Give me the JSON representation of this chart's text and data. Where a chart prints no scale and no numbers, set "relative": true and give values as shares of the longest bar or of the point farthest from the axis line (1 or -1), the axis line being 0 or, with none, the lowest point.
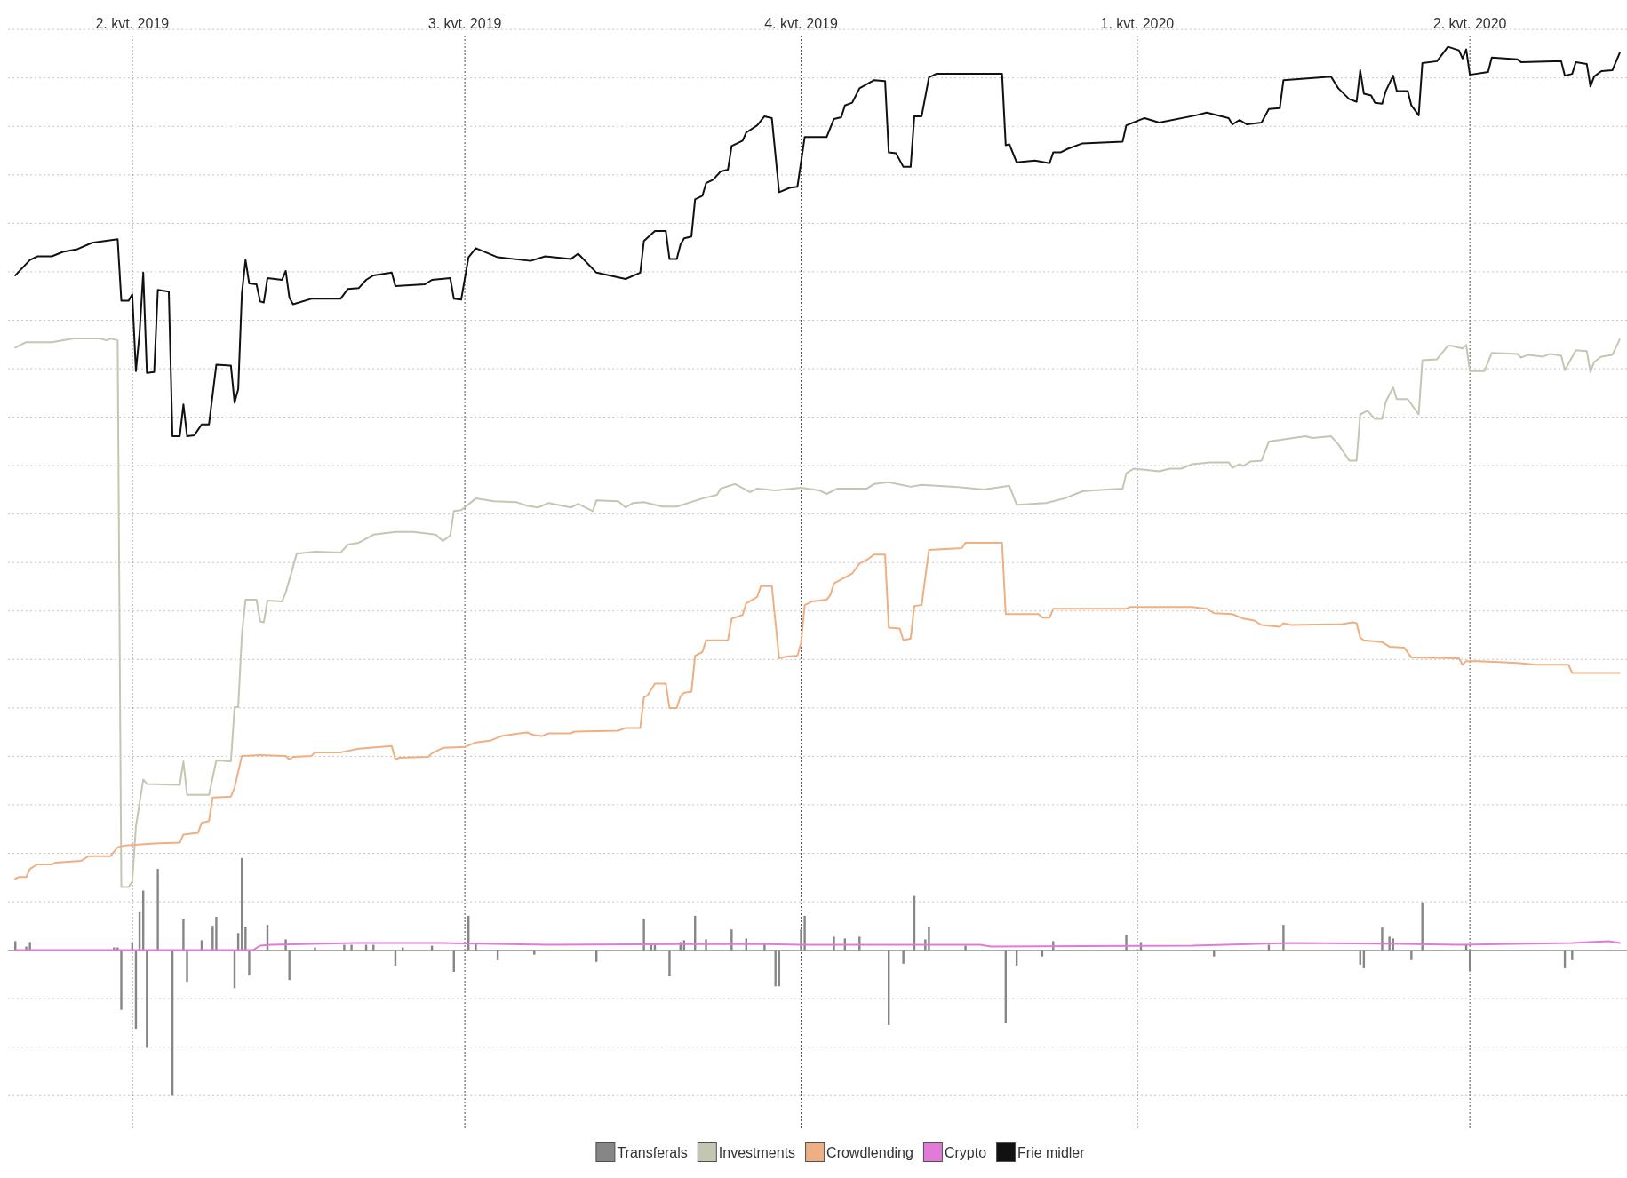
{
  "chart_data": {
    "type": "line",
    "relative": true,
    "grid": true,
    "legend": "bottom",
    "xlim": [
      "2019-02-26",
      "2020-05-14"
    ],
    "xticks": [
      {
        "value": "2019-04-01",
        "label": "2. kvt. 2019"
      },
      {
        "value": "2019-07-01",
        "label": "3. kvt. 2019"
      },
      {
        "value": "2019-10-01",
        "label": "4. kvt. 2019"
      },
      {
        "value": "2020-01-01",
        "label": "1. kvt. 2020"
      },
      {
        "value": "2020-04-01",
        "label": "2. kvt. 2020"
      }
    ],
    "series": [
      {
        "name": "Transferals",
        "type": "bar",
        "color": "#868686",
        "x": [
          "2019-02-28",
          "2019-03-03",
          "2019-03-04",
          "2019-03-27",
          "2019-03-28",
          "2019-03-29",
          "2019-04-01",
          "2019-04-02",
          "2019-04-03",
          "2019-04-04",
          "2019-04-05",
          "2019-04-08",
          "2019-04-12",
          "2019-04-15",
          "2019-04-16",
          "2019-04-20",
          "2019-04-23",
          "2019-04-24",
          "2019-04-29",
          "2019-04-30",
          "2019-05-01",
          "2019-05-02",
          "2019-05-03",
          "2019-05-08",
          "2019-05-13",
          "2019-05-14",
          "2019-05-21",
          "2019-05-29",
          "2019-05-31",
          "2019-06-04",
          "2019-06-06",
          "2019-06-12",
          "2019-06-14",
          "2019-06-22",
          "2019-06-28",
          "2019-07-02",
          "2019-07-04",
          "2019-07-10",
          "2019-07-20",
          "2019-08-06",
          "2019-08-19",
          "2019-08-21",
          "2019-08-22",
          "2019-08-26",
          "2019-08-29",
          "2019-08-30",
          "2019-09-02",
          "2019-09-05",
          "2019-09-12",
          "2019-09-16",
          "2019-09-21",
          "2019-09-24",
          "2019-09-25",
          "2019-10-01",
          "2019-10-02",
          "2019-10-10",
          "2019-10-13",
          "2019-10-17",
          "2019-10-25",
          "2019-10-29",
          "2019-11-01",
          "2019-11-04",
          "2019-11-05",
          "2019-11-15",
          "2019-11-26",
          "2019-11-29",
          "2019-12-06",
          "2019-12-09",
          "2019-12-29",
          "2020-01-02",
          "2020-01-22",
          "2020-02-06",
          "2020-02-10",
          "2020-03-02",
          "2020-03-03",
          "2020-03-08",
          "2020-03-10",
          "2020-03-11",
          "2020-03-16",
          "2020-03-19",
          "2020-03-31",
          "2020-04-01",
          "2020-04-27",
          "2020-04-29"
        ],
        "values": [
          0.01,
          0.004,
          0.009,
          0.003,
          0.003,
          -0.066,
          0.008,
          -0.087,
          0.042,
          0.066,
          -0.108,
          0.09,
          -0.161,
          0.034,
          -0.035,
          0.011,
          0.027,
          0.037,
          -0.042,
          0.019,
          0.102,
          0.026,
          -0.028,
          0.028,
          0.012,
          -0.033,
          0.003,
          0.006,
          0.006,
          0.006,
          0.006,
          -0.017,
          0.003,
          0.005,
          -0.024,
          0.038,
          0.007,
          -0.011,
          -0.005,
          -0.013,
          0.034,
          0.006,
          0.006,
          -0.029,
          0.009,
          0.011,
          0.038,
          0.012,
          0.023,
          0.013,
          0.008,
          -0.04,
          -0.04,
          0.023,
          0.038,
          0.015,
          0.013,
          0.015,
          -0.083,
          -0.015,
          0.06,
          0.012,
          0.026,
          0.005,
          -0.081,
          -0.017,
          -0.007,
          0.01,
          0.017,
          0.009,
          -0.007,
          0.006,
          0.028,
          -0.016,
          -0.02,
          0.025,
          0.015,
          0.013,
          -0.011,
          0.053,
          0.006,
          -0.023,
          -0.02,
          -0.011
        ]
      },
      {
        "name": "Investments",
        "color": "#c5c6b2",
        "x": [
          "2019-02-28",
          "2019-03-03",
          "2019-03-10",
          "2019-03-16",
          "2019-03-23",
          "2019-03-25",
          "2019-03-26",
          "2019-03-28",
          "2019-03-29",
          "2019-03-31",
          "2019-04-01",
          "2019-04-02",
          "2019-04-04",
          "2019-04-05",
          "2019-04-14",
          "2019-04-15",
          "2019-04-16",
          "2019-04-22",
          "2019-04-24",
          "2019-04-28",
          "2019-04-29",
          "2019-04-30",
          "2019-05-01",
          "2019-05-02",
          "2019-05-05",
          "2019-05-06",
          "2019-05-07",
          "2019-05-08",
          "2019-05-12",
          "2019-05-13",
          "2019-05-14",
          "2019-05-16",
          "2019-05-21",
          "2019-05-28",
          "2019-05-30",
          "2019-06-02",
          "2019-06-06",
          "2019-06-12",
          "2019-06-17",
          "2019-06-23",
          "2019-06-25",
          "2019-06-27",
          "2019-06-28",
          "2019-06-30",
          "2019-07-04",
          "2019-07-09",
          "2019-07-15",
          "2019-07-18",
          "2019-07-21",
          "2019-07-24",
          "2019-07-30",
          "2019-08-01",
          "2019-08-05",
          "2019-08-06",
          "2019-08-12",
          "2019-08-14",
          "2019-08-16",
          "2019-08-19",
          "2019-08-24",
          "2019-08-28",
          "2019-09-04",
          "2019-09-08",
          "2019-09-09",
          "2019-09-13",
          "2019-09-17",
          "2019-09-19",
          "2019-09-24",
          "2019-10-01",
          "2019-10-06",
          "2019-10-08",
          "2019-10-11",
          "2019-10-19",
          "2019-10-21",
          "2019-10-25",
          "2019-10-31",
          "2019-11-03",
          "2019-11-12",
          "2019-11-20",
          "2019-11-27",
          "2019-11-29",
          "2019-12-07",
          "2019-12-12",
          "2019-12-17",
          "2019-12-20",
          "2019-12-28",
          "2019-12-29",
          "2019-12-31",
          "2020-01-07",
          "2020-01-10",
          "2020-01-13",
          "2020-01-16",
          "2020-01-21",
          "2020-01-26",
          "2020-01-27",
          "2020-01-29",
          "2020-01-30",
          "2020-02-01",
          "2020-02-04",
          "2020-02-06",
          "2020-02-11",
          "2020-02-16",
          "2020-02-18",
          "2020-02-23",
          "2020-02-25",
          "2020-02-28",
          "2020-03-01",
          "2020-03-02",
          "2020-03-04",
          "2020-03-06",
          "2020-03-08",
          "2020-03-09",
          "2020-03-11",
          "2020-03-12",
          "2020-03-15",
          "2020-03-18",
          "2020-03-19",
          "2020-03-23",
          "2020-03-26",
          "2020-03-27",
          "2020-03-30",
          "2020-03-31",
          "2020-04-01",
          "2020-04-05",
          "2020-04-07",
          "2020-04-14",
          "2020-04-15",
          "2020-04-17",
          "2020-04-21",
          "2020-04-23",
          "2020-04-26",
          "2020-04-27",
          "2020-04-30",
          "2020-05-03",
          "2020-05-04",
          "2020-05-05",
          "2020-05-07",
          "2020-05-10",
          "2020-05-12"
        ],
        "values": [
          0.667,
          0.673,
          0.673,
          0.677,
          0.677,
          0.675,
          0.677,
          0.675,
          0.07,
          0.07,
          0.076,
          0.137,
          0.189,
          0.184,
          0.183,
          0.209,
          0.172,
          0.172,
          0.21,
          0.209,
          0.269,
          0.269,
          0.349,
          0.388,
          0.388,
          0.364,
          0.363,
          0.387,
          0.386,
          0.396,
          0.41,
          0.439,
          0.441,
          0.44,
          0.449,
          0.451,
          0.46,
          0.463,
          0.463,
          0.46,
          0.453,
          0.459,
          0.486,
          0.487,
          0.5,
          0.497,
          0.496,
          0.492,
          0.49,
          0.495,
          0.49,
          0.494,
          0.486,
          0.498,
          0.497,
          0.49,
          0.495,
          0.496,
          0.491,
          0.491,
          0.5,
          0.504,
          0.511,
          0.516,
          0.507,
          0.511,
          0.509,
          0.512,
          0.509,
          0.505,
          0.511,
          0.511,
          0.516,
          0.518,
          0.513,
          0.515,
          0.513,
          0.51,
          0.514,
          0.493,
          0.495,
          0.5,
          0.508,
          0.509,
          0.511,
          0.528,
          0.533,
          0.53,
          0.533,
          0.533,
          0.538,
          0.54,
          0.54,
          0.534,
          0.538,
          0.536,
          0.541,
          0.542,
          0.563,
          0.566,
          0.569,
          0.567,
          0.569,
          0.56,
          0.542,
          0.542,
          0.593,
          0.597,
          0.588,
          0.588,
          0.607,
          0.623,
          0.61,
          0.61,
          0.593,
          0.653,
          0.654,
          0.669,
          0.669,
          0.666,
          0.67,
          0.641,
          0.641,
          0.661,
          0.66,
          0.656,
          0.659,
          0.657,
          0.66,
          0.658,
          0.642,
          0.664,
          0.663,
          0.64,
          0.651,
          0.657,
          0.659,
          0.676
        ]
      },
      {
        "name": "Crowdlending",
        "color": "#eeb082",
        "x": [
          "2019-02-28",
          "2019-03-01",
          "2019-03-03",
          "2019-03-04",
          "2019-03-06",
          "2019-03-10",
          "2019-03-11",
          "2019-03-18",
          "2019-03-20",
          "2019-03-26",
          "2019-03-28",
          "2019-03-30",
          "2019-04-07",
          "2019-04-14",
          "2019-04-15",
          "2019-04-19",
          "2019-04-20",
          "2019-04-22",
          "2019-04-23",
          "2019-04-28",
          "2019-04-29",
          "2019-05-01",
          "2019-05-06",
          "2019-05-13",
          "2019-05-14",
          "2019-05-15",
          "2019-05-20",
          "2019-05-21",
          "2019-05-28",
          "2019-06-02",
          "2019-06-11",
          "2019-06-12",
          "2019-06-13",
          "2019-06-21",
          "2019-06-22",
          "2019-06-25",
          "2019-07-01",
          "2019-07-04",
          "2019-07-08",
          "2019-07-11",
          "2019-07-16",
          "2019-07-18",
          "2019-07-20",
          "2019-07-22",
          "2019-07-24",
          "2019-07-30",
          "2019-07-31",
          "2019-08-12",
          "2019-08-14",
          "2019-08-18",
          "2019-08-19",
          "2019-08-20",
          "2019-08-22",
          "2019-08-25",
          "2019-08-26",
          "2019-08-28",
          "2019-08-29",
          "2019-08-30",
          "2019-09-01",
          "2019-09-02",
          "2019-09-04",
          "2019-09-05",
          "2019-09-11",
          "2019-09-12",
          "2019-09-15",
          "2019-09-16",
          "2019-09-19",
          "2019-09-20",
          "2019-09-23",
          "2019-09-25",
          "2019-09-27",
          "2019-09-30",
          "2019-10-01",
          "2019-10-02",
          "2019-10-04",
          "2019-10-08",
          "2019-10-09",
          "2019-10-10",
          "2019-10-15",
          "2019-10-17",
          "2019-10-19",
          "2019-10-21",
          "2019-10-24",
          "2019-10-25",
          "2019-10-28",
          "2019-10-29",
          "2019-10-31",
          "2019-11-01",
          "2019-11-03",
          "2019-11-05",
          "2019-11-14",
          "2019-11-15",
          "2019-11-25",
          "2019-11-26",
          "2019-12-05",
          "2019-12-06",
          "2019-12-08",
          "2019-12-09",
          "2019-12-29",
          "2019-12-30",
          "2020-01-16",
          "2020-01-20",
          "2020-01-22",
          "2020-01-27",
          "2020-01-30",
          "2020-02-02",
          "2020-02-04",
          "2020-02-09",
          "2020-02-10",
          "2020-02-12",
          "2020-02-26",
          "2020-02-29",
          "2020-03-01",
          "2020-03-02",
          "2020-03-03",
          "2020-03-08",
          "2020-03-10",
          "2020-03-14",
          "2020-03-16",
          "2020-03-29",
          "2020-03-30",
          "2020-03-31",
          "2020-04-03",
          "2020-04-09",
          "2020-04-14",
          "2020-04-19",
          "2020-04-28",
          "2020-04-29",
          "2020-05-12"
        ],
        "values": [
          0.079,
          0.081,
          0.081,
          0.09,
          0.095,
          0.095,
          0.097,
          0.099,
          0.104,
          0.104,
          0.114,
          0.116,
          0.118,
          0.119,
          0.128,
          0.13,
          0.141,
          0.143,
          0.169,
          0.17,
          0.18,
          0.215,
          0.216,
          0.215,
          0.211,
          0.214,
          0.215,
          0.219,
          0.219,
          0.223,
          0.226,
          0.211,
          0.213,
          0.214,
          0.218,
          0.224,
          0.225,
          0.23,
          0.232,
          0.237,
          0.24,
          0.241,
          0.238,
          0.237,
          0.24,
          0.24,
          0.242,
          0.243,
          0.246,
          0.246,
          0.28,
          0.282,
          0.295,
          0.295,
          0.268,
          0.268,
          0.281,
          0.285,
          0.286,
          0.326,
          0.33,
          0.343,
          0.343,
          0.367,
          0.371,
          0.384,
          0.391,
          0.403,
          0.403,
          0.323,
          0.325,
          0.326,
          0.34,
          0.382,
          0.386,
          0.388,
          0.393,
          0.406,
          0.417,
          0.428,
          0.432,
          0.438,
          0.438,
          0.357,
          0.356,
          0.343,
          0.345,
          0.381,
          0.382,
          0.443,
          0.445,
          0.451,
          0.451,
          0.372,
          0.372,
          0.368,
          0.368,
          0.378,
          0.378,
          0.38,
          0.38,
          0.378,
          0.373,
          0.372,
          0.367,
          0.365,
          0.36,
          0.358,
          0.362,
          0.36,
          0.361,
          0.363,
          0.362,
          0.346,
          0.343,
          0.341,
          0.336,
          0.335,
          0.324,
          0.323,
          0.316,
          0.32,
          0.32,
          0.319,
          0.318,
          0.316,
          0.316,
          0.307,
          0.307
        ]
      },
      {
        "name": "Crypto",
        "color": "#e27bd8",
        "x": [
          "2019-02-28",
          "2019-05-04",
          "2019-05-06",
          "2019-05-09",
          "2019-06-01",
          "2019-06-25",
          "2019-07-24",
          "2019-09-18",
          "2019-10-01",
          "2019-11-19",
          "2019-11-22",
          "2020-01-16",
          "2020-02-12",
          "2020-03-13",
          "2020-03-29",
          "2020-04-29",
          "2020-05-09",
          "2020-05-12"
        ],
        "values": [
          0,
          0,
          0.005,
          0.006,
          0.008,
          0.008,
          0.006,
          0.007,
          0.006,
          0.006,
          0.004,
          0.005,
          0.008,
          0.007,
          0.006,
          0.008,
          0.01,
          0.008
        ]
      },
      {
        "name": "Frie midler",
        "color": "#111111",
        "x": [
          "2019-02-28",
          "2019-03-04",
          "2019-03-06",
          "2019-03-10",
          "2019-03-13",
          "2019-03-17",
          "2019-03-21",
          "2019-03-28",
          "2019-03-29",
          "2019-03-31",
          "2019-04-01",
          "2019-04-02",
          "2019-04-03",
          "2019-04-04",
          "2019-04-05",
          "2019-04-07",
          "2019-04-08",
          "2019-04-11",
          "2019-04-12",
          "2019-04-14",
          "2019-04-15",
          "2019-04-16",
          "2019-04-18",
          "2019-04-20",
          "2019-04-22",
          "2019-04-24",
          "2019-04-28",
          "2019-04-29",
          "2019-04-30",
          "2019-05-01",
          "2019-05-02",
          "2019-05-03",
          "2019-05-05",
          "2019-05-06",
          "2019-05-07",
          "2019-05-08",
          "2019-05-12",
          "2019-05-13",
          "2019-05-14",
          "2019-05-15",
          "2019-05-20",
          "2019-05-28",
          "2019-05-30",
          "2019-06-02",
          "2019-06-04",
          "2019-06-06",
          "2019-06-11",
          "2019-06-12",
          "2019-06-20",
          "2019-06-22",
          "2019-06-27",
          "2019-06-28",
          "2019-06-30",
          "2019-07-02",
          "2019-07-04",
          "2019-07-10",
          "2019-07-19",
          "2019-07-23",
          "2019-07-30",
          "2019-08-01",
          "2019-08-06",
          "2019-08-14",
          "2019-08-18",
          "2019-08-19",
          "2019-08-22",
          "2019-08-25",
          "2019-08-26",
          "2019-08-28",
          "2019-08-29",
          "2019-08-30",
          "2019-09-01",
          "2019-09-02",
          "2019-09-04",
          "2019-09-05",
          "2019-09-07",
          "2019-09-09",
          "2019-09-11",
          "2019-09-12",
          "2019-09-15",
          "2019-09-16",
          "2019-09-19",
          "2019-09-21",
          "2019-09-23",
          "2019-09-25",
          "2019-09-28",
          "2019-09-30",
          "2019-10-02",
          "2019-10-08",
          "2019-10-10",
          "2019-10-12",
          "2019-10-13",
          "2019-10-15",
          "2019-10-17",
          "2019-10-21",
          "2019-10-24",
          "2019-10-25",
          "2019-10-27",
          "2019-10-29",
          "2019-10-31",
          "2019-11-01",
          "2019-11-03",
          "2019-11-05",
          "2019-11-07",
          "2019-11-15",
          "2019-11-25",
          "2019-11-26",
          "2019-11-27",
          "2019-11-29",
          "2019-12-04",
          "2019-12-08",
          "2019-12-09",
          "2019-12-11",
          "2019-12-13",
          "2019-12-17",
          "2019-12-28",
          "2019-12-29",
          "2020-01-03",
          "2020-01-07",
          "2020-01-17",
          "2020-01-20",
          "2020-01-26",
          "2020-01-27",
          "2020-01-29",
          "2020-01-31",
          "2020-02-04",
          "2020-02-06",
          "2020-02-09",
          "2020-02-10",
          "2020-02-23",
          "2020-02-25",
          "2020-02-28",
          "2020-03-01",
          "2020-03-02",
          "2020-03-03",
          "2020-03-05",
          "2020-03-06",
          "2020-03-08",
          "2020-03-09",
          "2020-03-11",
          "2020-03-12",
          "2020-03-15",
          "2020-03-16",
          "2020-03-18",
          "2020-03-19",
          "2020-03-23",
          "2020-03-26",
          "2020-03-29",
          "2020-03-30",
          "2020-03-31",
          "2020-04-01",
          "2020-04-06",
          "2020-04-07",
          "2020-04-14",
          "2020-04-15",
          "2020-04-26",
          "2020-04-27",
          "2020-04-29",
          "2020-04-30",
          "2020-05-03",
          "2020-05-04",
          "2020-05-05",
          "2020-05-07",
          "2020-05-10",
          "2020-05-12"
        ],
        "values": [
          0.747,
          0.764,
          0.768,
          0.768,
          0.773,
          0.776,
          0.783,
          0.787,
          0.719,
          0.719,
          0.726,
          0.641,
          0.683,
          0.75,
          0.639,
          0.64,
          0.731,
          0.729,
          0.569,
          0.569,
          0.604,
          0.569,
          0.57,
          0.582,
          0.582,
          0.648,
          0.647,
          0.606,
          0.621,
          0.727,
          0.764,
          0.738,
          0.737,
          0.718,
          0.717,
          0.744,
          0.742,
          0.752,
          0.722,
          0.715,
          0.721,
          0.721,
          0.732,
          0.733,
          0.742,
          0.747,
          0.75,
          0.735,
          0.737,
          0.742,
          0.744,
          0.721,
          0.72,
          0.767,
          0.777,
          0.767,
          0.763,
          0.768,
          0.765,
          0.771,
          0.75,
          0.743,
          0.75,
          0.785,
          0.796,
          0.796,
          0.765,
          0.765,
          0.781,
          0.788,
          0.79,
          0.831,
          0.835,
          0.849,
          0.853,
          0.862,
          0.864,
          0.89,
          0.896,
          0.905,
          0.913,
          0.923,
          0.921,
          0.839,
          0.844,
          0.845,
          0.9,
          0.9,
          0.92,
          0.922,
          0.935,
          0.938,
          0.954,
          0.963,
          0.962,
          0.883,
          0.882,
          0.867,
          0.867,
          0.923,
          0.923,
          0.966,
          0.97,
          0.97,
          0.97,
          0.891,
          0.892,
          0.872,
          0.874,
          0.871,
          0.883,
          0.883,
          0.887,
          0.893,
          0.895,
          0.913,
          0.921,
          0.916,
          0.924,
          0.927,
          0.921,
          0.914,
          0.919,
          0.914,
          0.916,
          0.931,
          0.932,
          0.963,
          0.967,
          0.954,
          0.942,
          0.939,
          0.974,
          0.948,
          0.946,
          0.938,
          0.937,
          0.951,
          0.968,
          0.951,
          0.951,
          0.935,
          0.924,
          0.982,
          0.984,
          1,
          0.996,
          0.987,
          0.997,
          0.969,
          0.972,
          0.988,
          0.986,
          0.983,
          0.984,
          0.968,
          0.97,
          0.983,
          0.981,
          0.956,
          0.967,
          0.973,
          0.974,
          0.993
        ]
      }
    ]
  }
}
